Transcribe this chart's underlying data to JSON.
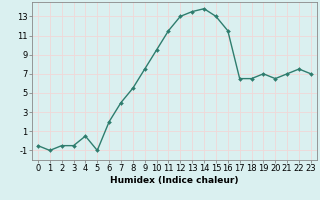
{
  "x": [
    0,
    1,
    2,
    3,
    4,
    5,
    6,
    7,
    8,
    9,
    10,
    11,
    12,
    13,
    14,
    15,
    16,
    17,
    18,
    19,
    20,
    21,
    22,
    23
  ],
  "y": [
    -0.5,
    -1.0,
    -0.5,
    -0.5,
    0.5,
    -1.0,
    2.0,
    4.0,
    5.5,
    7.5,
    9.5,
    11.5,
    13.0,
    13.5,
    13.8,
    13.0,
    11.5,
    6.5,
    6.5,
    7.0,
    6.5,
    7.0,
    7.5,
    7.0
  ],
  "line_color": "#2e7d6e",
  "marker": "D",
  "marker_size": 2.0,
  "line_width": 1.0,
  "xlabel": "Humidex (Indice chaleur)",
  "bg_color": "#daf0f0",
  "grid_color": "#f0d8d8",
  "xlim": [
    -0.5,
    23.5
  ],
  "ylim": [
    -2.0,
    14.5
  ],
  "yticks": [
    -1,
    1,
    3,
    5,
    7,
    9,
    11,
    13
  ],
  "xtick_labels": [
    "0",
    "1",
    "2",
    "3",
    "4",
    "5",
    "6",
    "7",
    "8",
    "9",
    "10",
    "11",
    "12",
    "13",
    "14",
    "15",
    "16",
    "17",
    "18",
    "19",
    "20",
    "21",
    "22",
    "23"
  ],
  "xlabel_fontsize": 6.5,
  "tick_fontsize": 6.0
}
